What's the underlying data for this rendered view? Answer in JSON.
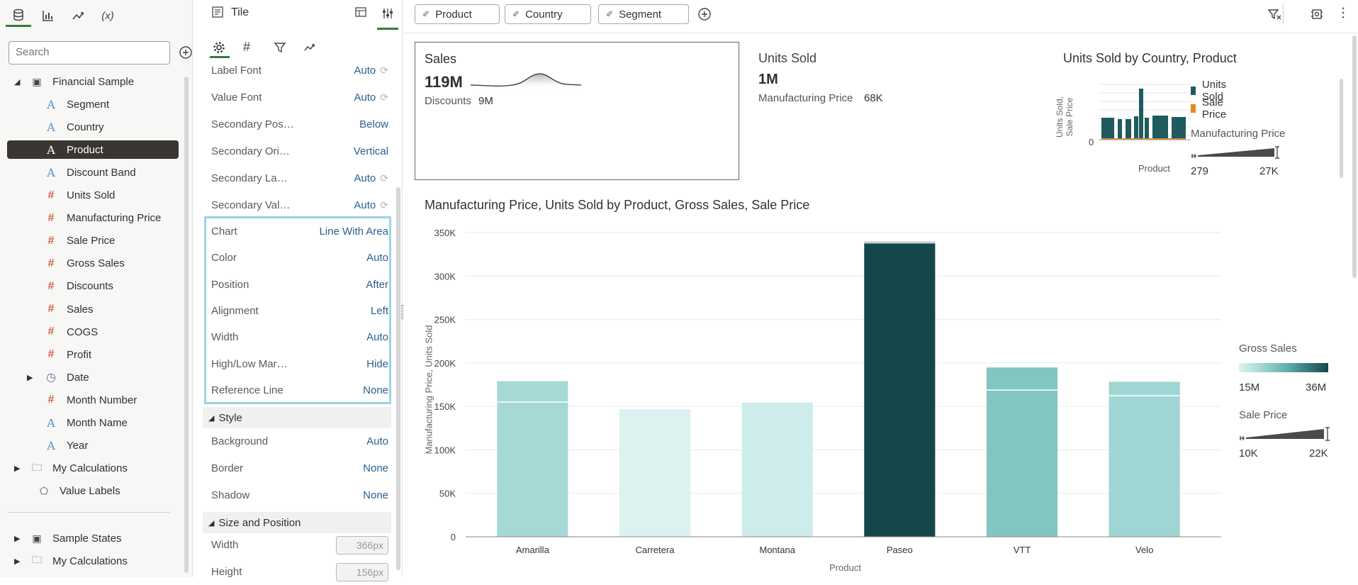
{
  "left": {
    "search_placeholder": "Search",
    "tree": [
      {
        "label": "Financial Sample",
        "type": "dataset",
        "level": 0,
        "expanded": true
      },
      {
        "label": "Segment",
        "type": "attr",
        "level": 1
      },
      {
        "label": "Country",
        "type": "attr",
        "level": 1
      },
      {
        "label": "Product",
        "type": "attr",
        "level": 1,
        "selected": true
      },
      {
        "label": "Discount Band",
        "type": "attr",
        "level": 1
      },
      {
        "label": "Units Sold",
        "type": "meas",
        "level": 1
      },
      {
        "label": "Manufacturing Price",
        "type": "meas",
        "level": 1
      },
      {
        "label": "Sale Price",
        "type": "meas",
        "level": 1
      },
      {
        "label": "Gross Sales",
        "type": "meas",
        "level": 1
      },
      {
        "label": "Discounts",
        "type": "meas",
        "level": 1
      },
      {
        "label": "Sales",
        "type": "meas",
        "level": 1
      },
      {
        "label": "COGS",
        "type": "meas",
        "level": 1
      },
      {
        "label": "Profit",
        "type": "meas",
        "level": 1
      },
      {
        "label": "Date",
        "type": "date",
        "level": 1,
        "collapsed": true
      },
      {
        "label": "Month Number",
        "type": "meas",
        "level": 1
      },
      {
        "label": "Month Name",
        "type": "attr",
        "level": 1
      },
      {
        "label": "Year",
        "type": "attr",
        "level": 1
      },
      {
        "label": "My Calculations",
        "type": "folder",
        "level": 0,
        "collapsed": true
      },
      {
        "label": "Value Labels",
        "type": "tag",
        "level": 0
      }
    ],
    "tree2": [
      {
        "label": "Sample States",
        "type": "dataset",
        "level": 0,
        "collapsed": true
      },
      {
        "label": "My Calculations",
        "type": "folder",
        "level": 0,
        "collapsed": true
      }
    ],
    "tab_fx": "(x)"
  },
  "mid": {
    "title": "Tile",
    "props_top": [
      {
        "label": "Label Font",
        "value": "Auto",
        "reset": true
      },
      {
        "label": "Value Font",
        "value": "Auto",
        "reset": true
      },
      {
        "label": "Secondary Pos…",
        "value": "Below"
      },
      {
        "label": "Secondary Ori…",
        "value": "Vertical"
      },
      {
        "label": "Secondary La…",
        "value": "Auto",
        "reset": true
      },
      {
        "label": "Secondary Val…",
        "value": "Auto",
        "reset": true
      }
    ],
    "props_chart": [
      {
        "label": "Chart",
        "value": "Line With Area"
      },
      {
        "label": "Color",
        "value": "Auto"
      },
      {
        "label": "Position",
        "value": "After"
      },
      {
        "label": "Alignment",
        "value": "Left"
      },
      {
        "label": "Width",
        "value": "Auto"
      },
      {
        "label": "High/Low Mar…",
        "value": "Hide"
      },
      {
        "label": "Reference Line",
        "value": "None"
      }
    ],
    "style_title": "Style",
    "props_style": [
      {
        "label": "Background",
        "value": "Auto"
      },
      {
        "label": "Border",
        "value": "None"
      },
      {
        "label": "Shadow",
        "value": "None"
      }
    ],
    "size_title": "Size and Position",
    "props_size": [
      {
        "label": "Width",
        "value": "366px"
      },
      {
        "label": "Height",
        "value": "156px"
      }
    ]
  },
  "canvas": {
    "filters": [
      "Product",
      "Country",
      "Segment"
    ],
    "tile1": {
      "label": "Sales",
      "value": "119M",
      "sec_label": "Discounts",
      "sec_value": "9M"
    },
    "tile2": {
      "label": "Units Sold",
      "value": "1M",
      "sec_label": "Manufacturing Price",
      "sec_value": "68K"
    },
    "mini": {
      "title": "Units Sold by Country, Product",
      "ylabel1": "Units Sold,",
      "ylabel2": "Sale Price",
      "ytick": "0",
      "xlabel": "Product",
      "legend": [
        {
          "name": "Units Sold",
          "color": "#1f5a5e"
        },
        {
          "name": "Sale Price",
          "color": "#e08a1e"
        }
      ],
      "size_title": "Manufacturing Price",
      "size_min": "279",
      "size_max": "27K"
    },
    "main": {
      "title": "Manufacturing Price, Units Sold by Product, Gross Sales, Sale Price",
      "gross_title": "Gross Sales",
      "gross_min": "15M",
      "gross_max": "36M",
      "sale_title": "Sale Price",
      "sale_min": "10K",
      "sale_max": "22K"
    }
  },
  "chart_data": {
    "type": "bar",
    "title": "Manufacturing Price, Units Sold by Product, Gross Sales, Sale Price",
    "xlabel": "Product",
    "ylabel": "Manufacturing Price, Units Sold",
    "categories": [
      "Amarilla",
      "Carretera",
      "Montana",
      "Paseo",
      "VTT",
      "Velo"
    ],
    "series": [
      {
        "name": "Manufacturing Price",
        "values": [
          24000,
          0,
          0,
          1000,
          26000,
          16000
        ]
      },
      {
        "name": "Units Sold",
        "values": [
          155000,
          146800,
          154200,
          338200,
          168800,
          162400
        ]
      }
    ],
    "colors": [
      "#a6d8d6",
      "#dcf1f0",
      "#cdeceb",
      "#14474a",
      "#82c5c1",
      "#9fd6d3"
    ],
    "ylim": [
      0,
      350000
    ],
    "yticks": [
      0,
      50000,
      100000,
      150000,
      200000,
      250000,
      300000,
      350000
    ],
    "ytick_labels": [
      "0",
      "50K",
      "100K",
      "150K",
      "200K",
      "250K",
      "300K",
      "350K"
    ],
    "grid": true
  }
}
